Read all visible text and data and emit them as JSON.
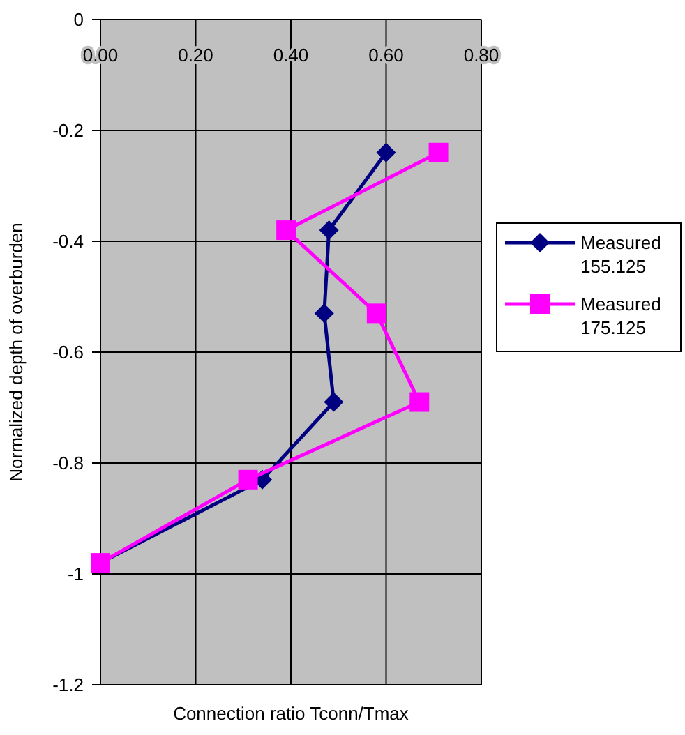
{
  "chart_data": {
    "type": "line",
    "xlabel": "Connection ratio Tconn/Tmax",
    "ylabel": "Normalized depth of overburden",
    "xlim": [
      0,
      0.8
    ],
    "xticks": [
      {
        "value": 0,
        "label": "0.00"
      },
      {
        "value": 0.2,
        "label": "0.20"
      },
      {
        "value": 0.4,
        "label": "0.40"
      },
      {
        "value": 0.6,
        "label": "0.60"
      },
      {
        "value": 0.8,
        "label": "0.80"
      }
    ],
    "ylim": [
      -1.2,
      0
    ],
    "yticks": [
      -1.2,
      -1,
      -0.8,
      -0.6,
      -0.4,
      -0.2,
      0
    ],
    "grid": true,
    "legend": "right",
    "line_style": "solid",
    "series": [
      {
        "name": "Measured 155.125",
        "color": "#000080",
        "marker": "diamond",
        "x": [
          0.6,
          0.48,
          0.47,
          0.49,
          0.34,
          0
        ],
        "values": [
          -0.24,
          -0.38,
          -0.53,
          -0.69,
          -0.83,
          -0.98
        ]
      },
      {
        "name": "Measured 175.125",
        "color": "#ff00ff",
        "marker": "square",
        "x": [
          0.71,
          0.39,
          0.58,
          0.67,
          0.31,
          0
        ],
        "values": [
          -0.24,
          -0.38,
          -0.53,
          -0.69,
          -0.83,
          -0.98
        ]
      }
    ]
  }
}
